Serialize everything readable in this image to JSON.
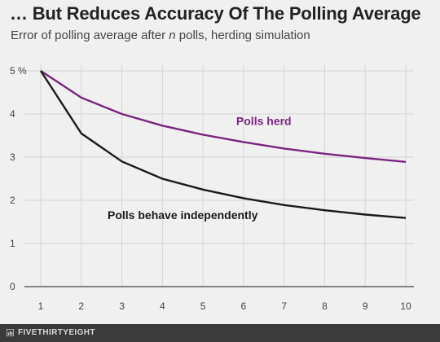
{
  "header": {
    "title": "… But Reduces Accuracy Of The Polling Average",
    "subtitle_pre": "Error of polling average after ",
    "subtitle_italic": "n",
    "subtitle_post": " polls, herding simulation"
  },
  "footer": {
    "brand": "FIVETHIRTYEIGHT"
  },
  "colors": {
    "herd": "#7b2480",
    "independent": "#1a1a1a",
    "grid": "#d5d5d5",
    "axis": "#555555",
    "background": "#f0f0f0"
  },
  "chart_data": {
    "type": "line",
    "title": "… But Reduces Accuracy Of The Polling Average",
    "subtitle": "Error of polling average after n polls, herding simulation",
    "xlabel": "",
    "ylabel": "",
    "x": [
      1,
      2,
      3,
      4,
      5,
      6,
      7,
      8,
      9,
      10
    ],
    "xlim": [
      1,
      10
    ],
    "ylim": [
      0,
      5
    ],
    "yticks": [
      0,
      1,
      2,
      3,
      4,
      5
    ],
    "ytick_labels": [
      "0",
      "1",
      "2",
      "3",
      "4",
      "5 %"
    ],
    "grid": true,
    "series": [
      {
        "name": "Polls herd",
        "color": "#7b2480",
        "values": [
          5.0,
          4.38,
          4.0,
          3.73,
          3.52,
          3.35,
          3.2,
          3.08,
          2.98,
          2.89
        ]
      },
      {
        "name": "Polls behave independently",
        "color": "#1a1a1a",
        "values": [
          5.0,
          3.55,
          2.9,
          2.5,
          2.25,
          2.05,
          1.89,
          1.77,
          1.67,
          1.59
        ]
      }
    ]
  }
}
